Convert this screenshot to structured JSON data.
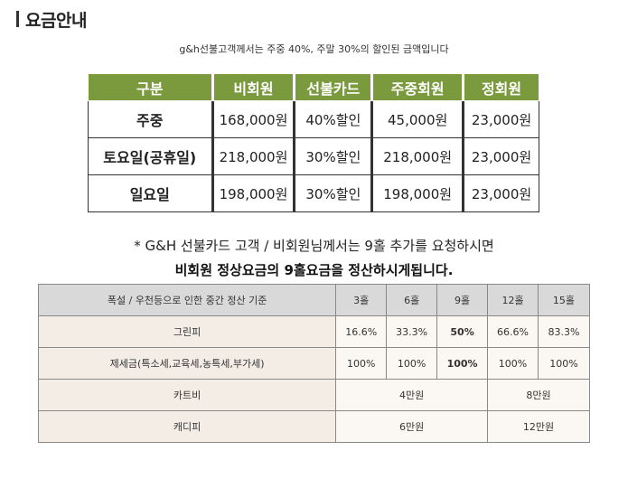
{
  "header": {
    "title": "요금안내"
  },
  "subtitle": "g&h선불고객께서는 주중 40%, 주말 30%의 할인된 금액입니다",
  "price_table": {
    "headers": [
      "구분",
      "비회원",
      "선불카드",
      "주중회원",
      "정회원"
    ],
    "rows": [
      {
        "label": "주중",
        "cells": [
          "168,000원",
          "40%할인",
          "45,000원",
          "23,000원"
        ]
      },
      {
        "label": "토요일(공휴일)",
        "cells": [
          "218,000원",
          "30%할인",
          "218,000원",
          "23,000원"
        ]
      },
      {
        "label": "일요일",
        "cells": [
          "198,000원",
          "30%할인",
          "198,000원",
          "23,000원"
        ]
      }
    ]
  },
  "note": {
    "line1": "* G&H 선불카드 고객 / 비회원님께서는 9홀 추가를 요청하시면",
    "line2": "비회원 정상요금의 9홀요금을 정산하시게됩니다."
  },
  "settle_table": {
    "header_label": "폭설 / 우천등으로 인한 중간 정산 기준",
    "holes": [
      "3홀",
      "6홀",
      "9홀",
      "12홀",
      "15홀"
    ],
    "green_fee": {
      "label": "그린피",
      "values": [
        "16.6%",
        "33.3%",
        "50%",
        "66.6%",
        "83.3%"
      ]
    },
    "tax": {
      "label": "제세금(특소세,교육세,농특세,부가세)",
      "values": [
        "100%",
        "100%",
        "100%",
        "100%",
        "100%"
      ]
    },
    "cart": {
      "label": "카트비",
      "first": "4만원",
      "second": "8만원"
    },
    "caddie": {
      "label": "캐디피",
      "first": "6만원",
      "second": "12만원"
    }
  }
}
